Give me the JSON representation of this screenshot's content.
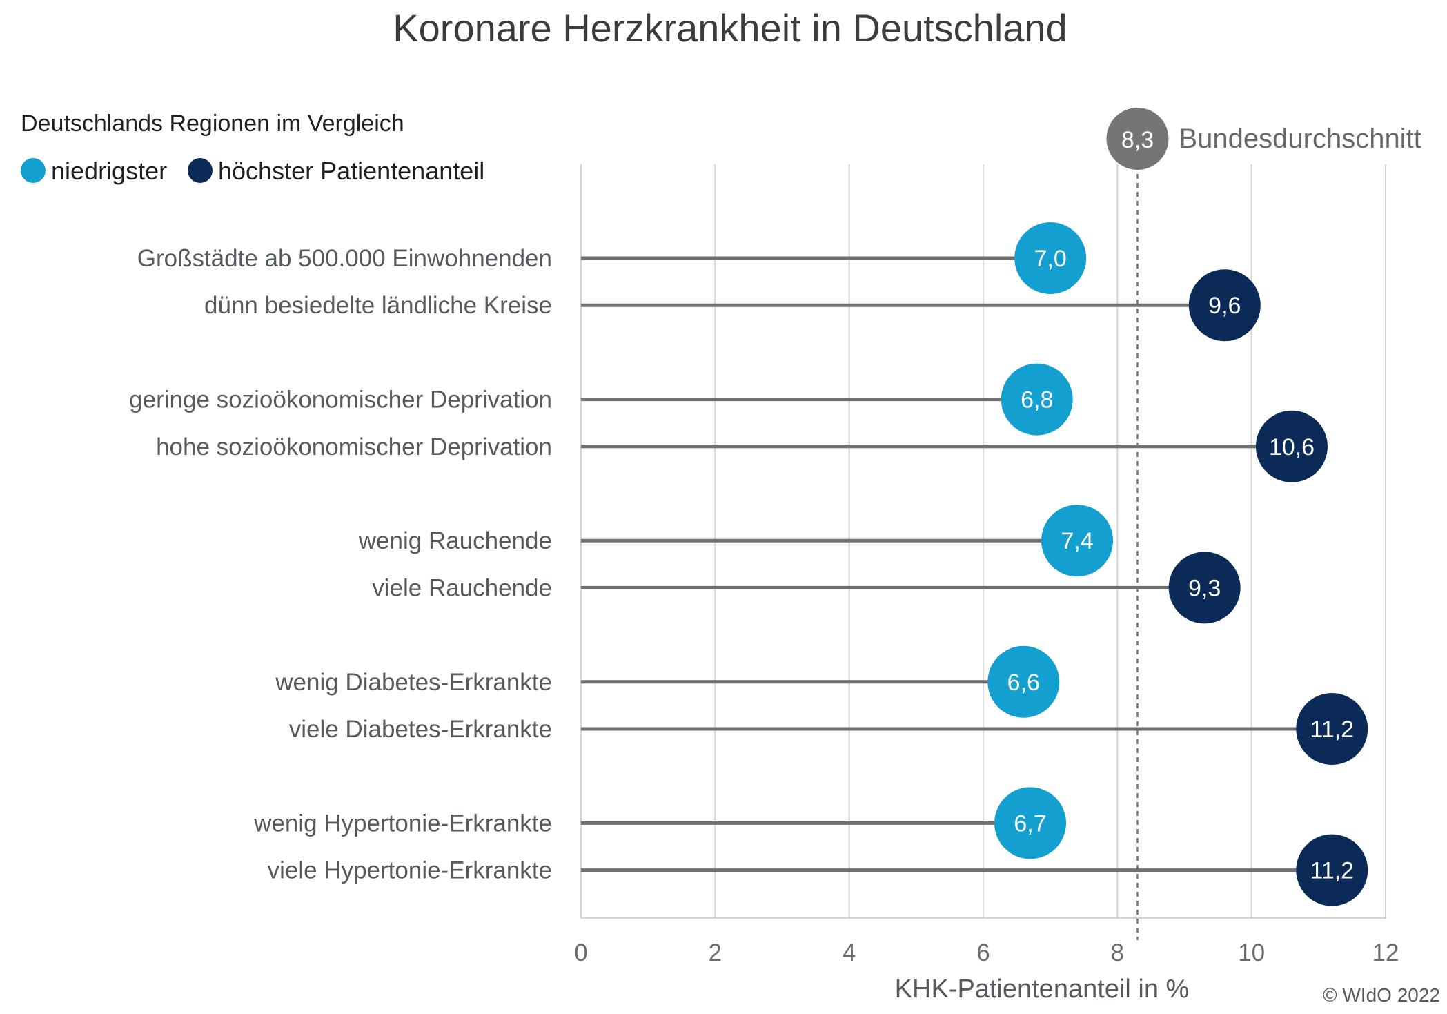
{
  "chart_data": {
    "type": "lollipop",
    "title": "Koronare Herzkrankheit in Deutschland",
    "legend": {
      "title": "Deutschlands Regionen im Vergleich",
      "entries": [
        {
          "label": "niedrigster",
          "color": "#13a0d0"
        },
        {
          "label": "höchster Patientenanteil",
          "color": "#0b2a57"
        }
      ],
      "placement": "top-left"
    },
    "categories": [
      "Großstädte ab 500.000 Einwohnenden",
      "dünn besiedelte ländliche Kreise",
      "geringe sozioökonomischer Deprivation",
      "hohe sozioökonomischer Deprivation",
      "wenig Rauchende",
      "viele Rauchende",
      "wenig Diabetes-Erkrankte",
      "viele Diabetes-Erkrankte",
      "wenig Hypertonie-Erkrankte",
      "viele Hypertonie-Erkrankte"
    ],
    "values": [
      7.0,
      9.6,
      6.8,
      10.6,
      7.4,
      9.3,
      6.6,
      11.2,
      6.7,
      11.2
    ],
    "value_labels": [
      "7,0",
      "9,6",
      "6,8",
      "10,6",
      "7,4",
      "9,3",
      "6,6",
      "11,2",
      "6,7",
      "11,2"
    ],
    "groups": [
      "low",
      "high",
      "low",
      "high",
      "low",
      "high",
      "low",
      "high",
      "low",
      "high"
    ],
    "colors": {
      "low": "#13a0d0",
      "high": "#0b2a57",
      "stem": "#707070",
      "grid": "#d4d4d4",
      "reference": "#757575"
    },
    "xlabel": "KHK-Patientenanteil in %",
    "xlim": [
      0,
      12
    ],
    "xticks": [
      0,
      2,
      4,
      6,
      8,
      10,
      12
    ],
    "grid": true,
    "reference": {
      "value": 8.3,
      "value_label": "8,3",
      "label": "Bundesdurchschnitt"
    },
    "copyright": "© WIdO 2022"
  }
}
